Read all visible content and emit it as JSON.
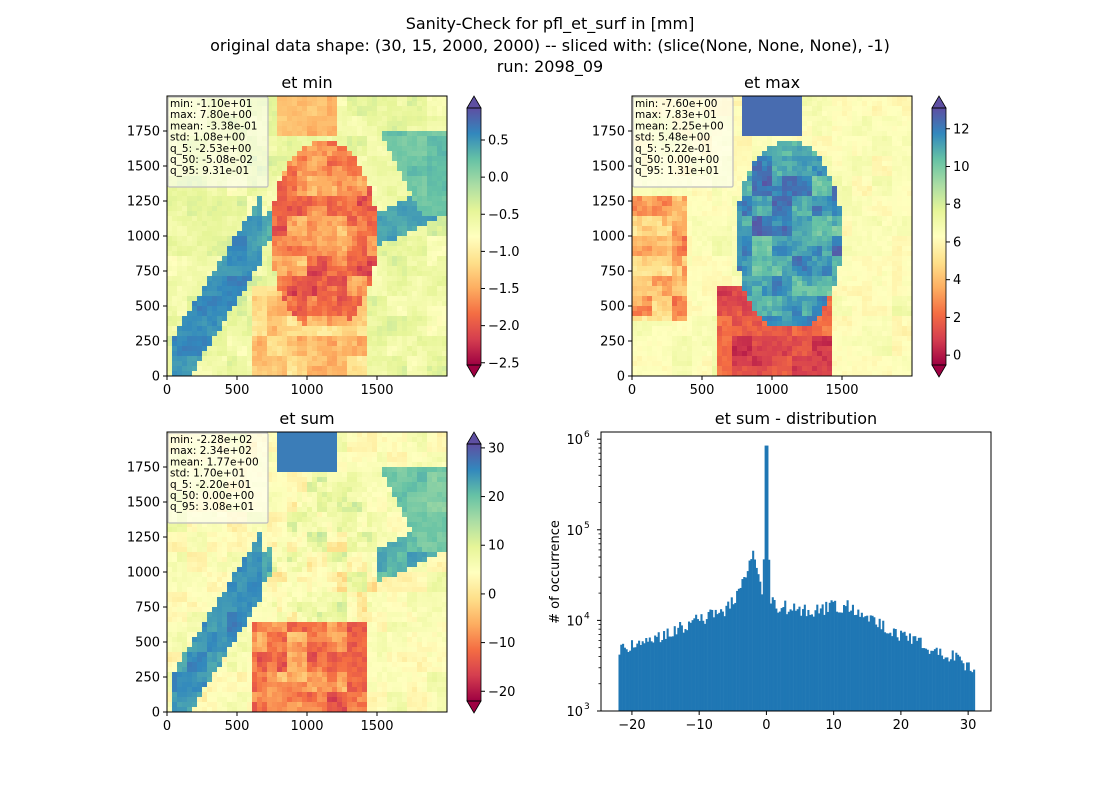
{
  "figure": {
    "title_lines": [
      "Sanity-Check for pfl_et_surf in [mm]",
      "original data shape: (30, 15, 2000, 2000) -- sliced with: (slice(None, None, None), -1)",
      "run: 2098_09"
    ]
  },
  "colormap": "Spectral",
  "chart_data": [
    {
      "type": "heatmap",
      "title": "et min",
      "xticks": [
        "0",
        "500",
        "1000",
        "1500"
      ],
      "yticks": [
        "0",
        "250",
        "500",
        "750",
        "1000",
        "1250",
        "1500",
        "1750"
      ],
      "xlim": [
        0,
        2000
      ],
      "ylim": [
        0,
        2000
      ],
      "stats": [
        "min: -1.10e+01",
        "max: 7.80e+00",
        "mean: -3.38e-01",
        "std: 1.08e+00",
        "q_5: -2.53e+00",
        "q_50: -5.08e-02",
        "q_95: 9.31e-01"
      ],
      "colorbar": {
        "vmin": -2.53,
        "vmax": 0.931,
        "ticks": [
          "0.5",
          "0.0",
          "−0.5",
          "−1.0",
          "−1.5",
          "−2.0",
          "−2.5"
        ],
        "tick_values": [
          0.5,
          0.0,
          -0.5,
          -1.0,
          -1.5,
          -2.0,
          -2.5
        ],
        "extend": "both"
      }
    },
    {
      "type": "heatmap",
      "title": "et max",
      "xticks": [
        "0",
        "500",
        "1000",
        "1500"
      ],
      "yticks": [
        "0",
        "250",
        "500",
        "750",
        "1000",
        "1250",
        "1500",
        "1750"
      ],
      "xlim": [
        0,
        2000
      ],
      "ylim": [
        0,
        2000
      ],
      "stats": [
        "min: -7.60e+00",
        "max: 7.83e+01",
        "mean: 2.25e+00",
        "std: 5.48e+00",
        "q_5: -5.22e-01",
        "q_50: 0.00e+00",
        "q_95: 1.31e+01"
      ],
      "colorbar": {
        "vmin": -0.522,
        "vmax": 13.1,
        "ticks": [
          "12",
          "10",
          "8",
          "6",
          "4",
          "2",
          "0"
        ],
        "tick_values": [
          12,
          10,
          8,
          6,
          4,
          2,
          0
        ],
        "extend": "both"
      }
    },
    {
      "type": "heatmap",
      "title": "et sum",
      "xticks": [
        "0",
        "500",
        "1000",
        "1500"
      ],
      "yticks": [
        "0",
        "250",
        "500",
        "750",
        "1000",
        "1250",
        "1500",
        "1750"
      ],
      "xlim": [
        0,
        2000
      ],
      "ylim": [
        0,
        2000
      ],
      "stats": [
        "min: -2.28e+02",
        "max: 2.34e+02",
        "mean: 1.77e+00",
        "std: 1.70e+01",
        "q_5: -2.20e+01",
        "q_50: 0.00e+00",
        "q_95: 3.08e+01"
      ],
      "colorbar": {
        "vmin": -22.0,
        "vmax": 30.8,
        "ticks": [
          "30",
          "20",
          "10",
          "0",
          "−10",
          "−20"
        ],
        "tick_values": [
          30,
          20,
          10,
          0,
          -10,
          -20
        ],
        "extend": "both"
      }
    },
    {
      "type": "bar",
      "title": "et sum - distribution",
      "ylabel": "# of occurrence",
      "yscale": "log",
      "ylim": [
        1000,
        1200000
      ],
      "xlim": [
        -24.6,
        33.4
      ],
      "xticks": [
        "−20",
        "−10",
        "0",
        "10",
        "20",
        "30"
      ],
      "xtick_values": [
        -20,
        -10,
        0,
        10,
        20,
        30
      ],
      "ytick_labels": [
        "10",
        "10",
        "10",
        "10"
      ],
      "ytick_exponents": [
        "3",
        "4",
        "5",
        "6"
      ],
      "ytick_values": [
        1000,
        10000,
        100000,
        1000000
      ],
      "color": "#1f77b4",
      "x": [
        -22,
        31
      ],
      "bin_anchors": [
        [
          -22,
          4500
        ],
        [
          -20,
          5200
        ],
        [
          -18,
          6000
        ],
        [
          -16,
          6800
        ],
        [
          -14,
          7800
        ],
        [
          -12,
          9000
        ],
        [
          -10,
          10500
        ],
        [
          -8,
          11500
        ],
        [
          -6,
          13500
        ],
        [
          -5,
          17000
        ],
        [
          -4,
          22000
        ],
        [
          -3,
          30000
        ],
        [
          -2.5,
          40000
        ],
        [
          -2,
          58000
        ],
        [
          -1.5,
          40000
        ],
        [
          -1,
          26000
        ],
        [
          -0.5,
          20000
        ],
        [
          0,
          850000
        ],
        [
          0.5,
          18000
        ],
        [
          1,
          16000
        ],
        [
          2,
          14000
        ],
        [
          4,
          14000
        ],
        [
          6,
          13500
        ],
        [
          8,
          13000
        ],
        [
          10,
          14500
        ],
        [
          12,
          15000
        ],
        [
          14,
          12500
        ],
        [
          16,
          10000
        ],
        [
          18,
          8500
        ],
        [
          20,
          7000
        ],
        [
          22,
          6000
        ],
        [
          24,
          5000
        ],
        [
          26,
          4500
        ],
        [
          28,
          4000
        ],
        [
          30,
          3200
        ],
        [
          31,
          3000
        ]
      ]
    }
  ]
}
